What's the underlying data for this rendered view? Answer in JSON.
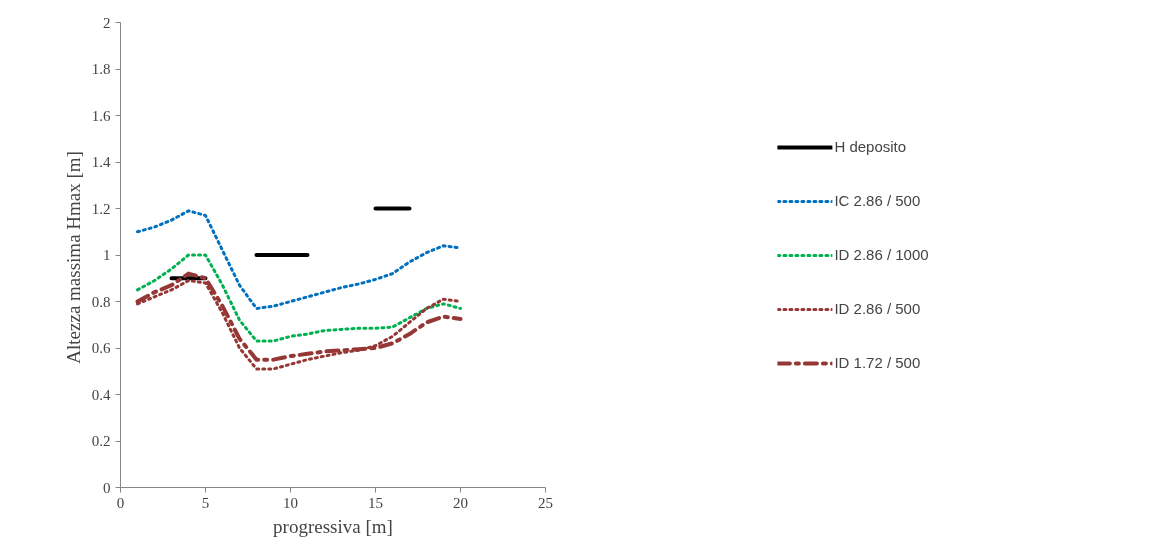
{
  "chart_data": {
    "type": "line",
    "xlabel": "progressiva [m]",
    "ylabel": "Altezza massima Hmax  [m]",
    "xlim": [
      0,
      25
    ],
    "xticks": [
      0,
      5,
      10,
      15,
      20,
      25
    ],
    "ylim": [
      0,
      2
    ],
    "yticks": [
      0,
      {
        "value": 0.2,
        "label": "0.2"
      },
      {
        "value": 0.4,
        "label": "0.4"
      },
      {
        "value": 0.6,
        "label": "0.6"
      },
      {
        "value": 0.8,
        "label": "0.8"
      },
      1,
      {
        "value": 1.2,
        "label": "1.2"
      },
      {
        "value": 1.4,
        "label": "1.4"
      },
      {
        "value": 1.6,
        "label": "1.6"
      },
      {
        "value": 1.8,
        "label": "1.8"
      },
      2
    ],
    "grid": false,
    "legend": "right",
    "marker": "none",
    "series": [
      {
        "name": "H deposito",
        "color": "#000000",
        "line_style": "solid",
        "x": [
          3,
          5,
          6,
          8,
          11,
          13,
          15,
          17
        ],
        "values": [
          0.9,
          0.9,
          null,
          1.0,
          1.0,
          null,
          1.2,
          1.2
        ]
      },
      {
        "name": "IC 2.86 / 500",
        "color": "#0070c0",
        "line_style": "dotted",
        "x": [
          1,
          2,
          3,
          4,
          5,
          6,
          7,
          8,
          9,
          10,
          11,
          12,
          13,
          14,
          15,
          16,
          17,
          18,
          19,
          20
        ],
        "values": [
          1.1,
          1.12,
          1.15,
          1.19,
          1.17,
          1.02,
          0.87,
          0.77,
          0.78,
          0.8,
          0.82,
          0.84,
          0.86,
          0.875,
          0.895,
          0.92,
          0.97,
          1.01,
          1.04,
          1.03
        ]
      },
      {
        "name": "ID 2.86 / 1000",
        "color": "#00b050",
        "line_style": "dotted",
        "x": [
          1,
          2,
          3,
          4,
          5,
          6,
          7,
          8,
          9,
          10,
          11,
          12,
          13,
          14,
          15,
          16,
          17,
          18,
          19,
          20
        ],
        "values": [
          0.85,
          0.89,
          0.94,
          1.0,
          1.0,
          0.87,
          0.72,
          0.63,
          0.63,
          0.65,
          0.66,
          0.675,
          0.68,
          0.685,
          0.685,
          0.69,
          0.73,
          0.77,
          0.79,
          0.77
        ]
      },
      {
        "name": "ID 2.86 / 500",
        "color": "#953735",
        "line_style": "dotted",
        "x": [
          1,
          2,
          3,
          4,
          5,
          6,
          7,
          8,
          9,
          10,
          11,
          12,
          13,
          14,
          15,
          16,
          17,
          18,
          19,
          20
        ],
        "values": [
          0.79,
          0.82,
          0.85,
          0.89,
          0.88,
          0.75,
          0.6,
          0.51,
          0.51,
          0.53,
          0.55,
          0.565,
          0.58,
          0.59,
          0.61,
          0.65,
          0.71,
          0.77,
          0.81,
          0.8
        ]
      },
      {
        "name": "ID 1.72 / 500",
        "color": "#953735",
        "line_style": "dashed",
        "x": [
          1,
          2,
          3,
          4,
          5,
          6,
          7,
          8,
          9,
          10,
          11,
          12,
          13,
          14,
          15,
          16,
          17,
          18,
          19,
          20
        ],
        "values": [
          0.8,
          0.84,
          0.87,
          0.92,
          0.9,
          0.78,
          0.64,
          0.55,
          0.55,
          0.565,
          0.575,
          0.585,
          0.59,
          0.595,
          0.6,
          0.62,
          0.66,
          0.71,
          0.735,
          0.725
        ]
      }
    ]
  }
}
